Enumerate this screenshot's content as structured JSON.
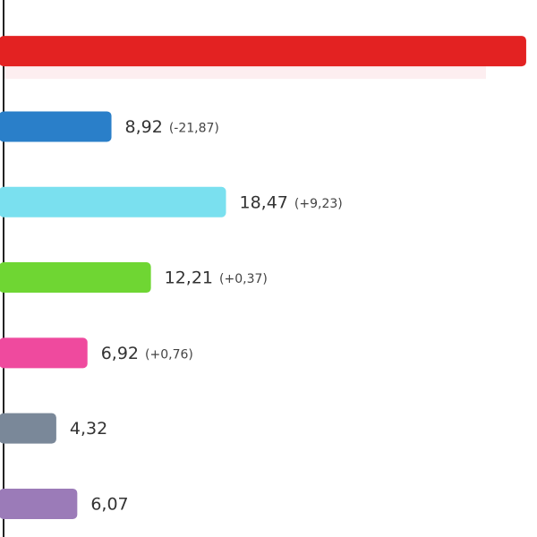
{
  "chart_data": {
    "type": "bar",
    "orientation": "horizontal",
    "values": [
      43.5,
      8.92,
      18.47,
      12.21,
      6.92,
      4.32,
      6.07
    ],
    "value_labels": [
      null,
      "8,92",
      "18,47",
      "12,21",
      "6,92",
      "4,32",
      "6,07"
    ],
    "change_labels": [
      null,
      "(-21,87)",
      "(+9,23)",
      "(+0,37)",
      "(+0,76)",
      null,
      null
    ],
    "colors": [
      "#e32222",
      "#2a7fc9",
      "#7ae0ef",
      "#6fd633",
      "#ef4a9e",
      "#7a8899",
      "#9b7bb8"
    ],
    "xlim": [
      0,
      44.4
    ]
  }
}
